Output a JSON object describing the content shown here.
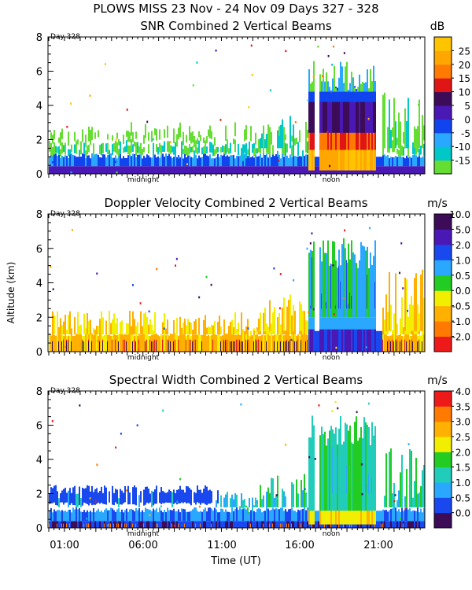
{
  "figure": {
    "title": "PLOWS MISS  23 Nov - 24 Nov 09 Days 327 - 328",
    "ylabel": "Altitude (km)",
    "xlabel": "Time (UT)",
    "xticks": [
      "01:00",
      "06:00",
      "11:00",
      "16:00",
      "21:00"
    ],
    "midnight_label": "midnight",
    "noon_label": "noon",
    "day_label": "Day 328"
  },
  "chart_data": [
    {
      "type": "heatmap",
      "title": "SNR Combined 2 Vertical Beams",
      "unit": "dB",
      "xlabel": "Time (UT)",
      "ylabel": "Altitude (km)",
      "ylim": [
        0,
        8
      ],
      "yticks": [
        0,
        2,
        4,
        6,
        8
      ],
      "colorbar_labels": [
        "-15",
        "-10",
        "-5",
        "0",
        "5",
        "10",
        "15",
        "20",
        "25"
      ],
      "colorbar_colors": [
        "#66dd33",
        "#00c8c8",
        "#2aa8ff",
        "#1044ee",
        "#4a18b4",
        "#3c0c58",
        "#e01616",
        "#ff7a00",
        "#ffa600",
        "#ffc400"
      ]
    },
    {
      "type": "heatmap",
      "title": "Doppler Velocity Combined 2 Vertical Beams",
      "unit": "m/s",
      "xlabel": "Time (UT)",
      "ylabel": "Altitude (km)",
      "ylim": [
        0,
        8
      ],
      "yticks": [
        0,
        2,
        4,
        6,
        8
      ],
      "colorbar_labels": [
        "-2.0",
        "-1.0",
        "-0.5",
        "0.0",
        "0.5",
        "1.0",
        "2.0",
        "5.0",
        "10.0"
      ],
      "colorbar_colors": [
        "#ee1a1a",
        "#ff7a00",
        "#ffb000",
        "#f2ee00",
        "#22cc22",
        "#2aa8ff",
        "#1848ee",
        "#4a18b4",
        "#3c0c58"
      ]
    },
    {
      "type": "heatmap",
      "title": "Spectral Width Combined 2 Vertical Beams",
      "unit": "m/s",
      "xlabel": "Time (UT)",
      "ylabel": "Altitude (km)",
      "ylim": [
        0,
        8
      ],
      "yticks": [
        0,
        2,
        4,
        6,
        8
      ],
      "colorbar_labels": [
        "0.0",
        "0.5",
        "1.0",
        "1.5",
        "2.0",
        "2.5",
        "3.0",
        "3.5",
        "4.0"
      ],
      "colorbar_colors": [
        "#3c0c58",
        "#1848ee",
        "#2aa8ff",
        "#22ccbb",
        "#22cc22",
        "#f2ee00",
        "#ffb000",
        "#ff7a00",
        "#ee1a1a"
      ]
    }
  ]
}
